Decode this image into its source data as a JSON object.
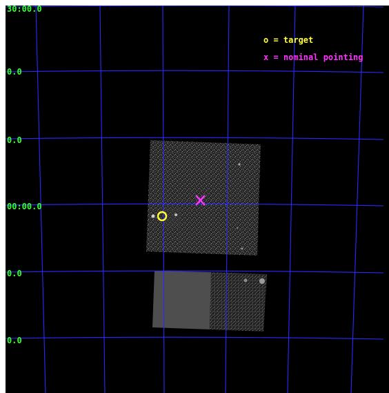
{
  "image": {
    "background_color": "#000000",
    "grid_color": "#2a2aff",
    "label_color": "#33ff33"
  },
  "coordinate_labels": [
    "30:00.0",
    "0.0",
    "0.0",
    "00:00.0",
    "0.0",
    "0.0"
  ],
  "legend": {
    "target": {
      "text": "o = target",
      "color": "#ffff33"
    },
    "nominal_pointing": {
      "text": "x = nominal pointing",
      "color": "#ff33ff"
    }
  },
  "markers": {
    "target": {
      "symbol": "circle",
      "color": "#ffff33"
    },
    "nominal_pointing": {
      "symbol": "x",
      "color": "#ff33ff"
    }
  }
}
